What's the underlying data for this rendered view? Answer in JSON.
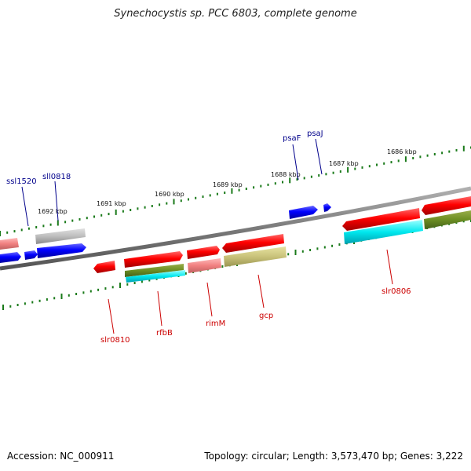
{
  "title": "Synechocystis sp. PCC 6803, complete genome",
  "footer": {
    "accession": "Accession: NC_000911",
    "summary": "Topology: circular; Length: 3,573,470 bp; Genes: 3,222"
  },
  "scale_labels": [
    "1692 kbp",
    "1691 kbp",
    "1690 kbp",
    "1689 kbp",
    "1688 kbp",
    "1687 kbp",
    "1686 kbp"
  ],
  "top_genes": [
    {
      "name": "ssl1520",
      "color": "#00008b"
    },
    {
      "name": "sll0818",
      "color": "#00008b"
    },
    {
      "name": "psaF",
      "color": "#00008b"
    },
    {
      "name": "psaJ",
      "color": "#00008b"
    }
  ],
  "bottom_genes": [
    {
      "name": "slr0810",
      "color": "#cc0000"
    },
    {
      "name": "rfbB",
      "color": "#cc0000"
    },
    {
      "name": "rimM",
      "color": "#cc0000"
    },
    {
      "name": "gcp",
      "color": "#cc0000"
    },
    {
      "name": "slr0806",
      "color": "#cc0000"
    }
  ],
  "colors": {
    "backbone": "#808080",
    "forward_cds": "#e00000",
    "reverse_cds": "#0000dd",
    "tick": "#1a7a1a"
  }
}
